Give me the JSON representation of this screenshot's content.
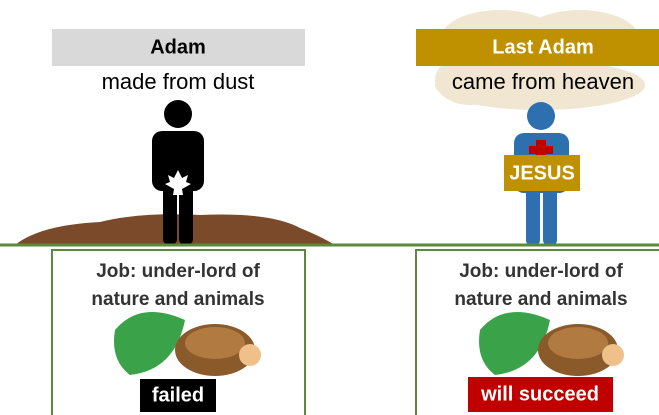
{
  "panels": [
    {
      "title": "Adam",
      "subtitle": "made from dust",
      "job": [
        "Job: under-lord of",
        "nature and animals"
      ],
      "result": "failed"
    },
    {
      "title": "Last Adam",
      "subtitle": "came from heaven",
      "figure_label": "JESUS",
      "job": [
        "Job: under-lord of",
        "nature and animals"
      ],
      "result": "will succeed"
    }
  ]
}
